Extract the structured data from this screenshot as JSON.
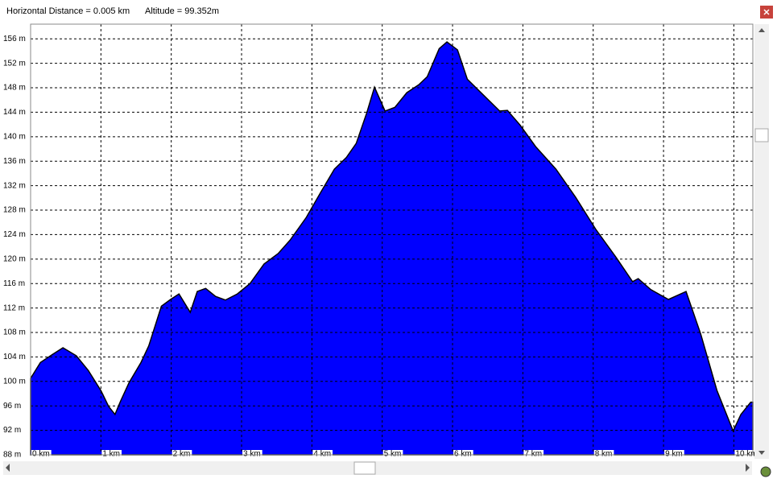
{
  "header": {
    "distance": "Horizontal Distance = 0.005 km",
    "altitude": "Altitude =  99.352m"
  },
  "chart_data": {
    "type": "area",
    "color": "#0000ff",
    "grid": true,
    "x": [
      0,
      0.14,
      0.31,
      0.46,
      0.65,
      0.82,
      1.0,
      1.11,
      1.2,
      1.28,
      1.4,
      1.57,
      1.68,
      1.86,
      1.99,
      2.11,
      2.27,
      2.37,
      2.49,
      2.63,
      2.77,
      2.94,
      3.12,
      3.32,
      3.52,
      3.69,
      3.92,
      4.12,
      4.32,
      4.49,
      4.63,
      4.78,
      4.89,
      5.04,
      5.18,
      5.35,
      5.52,
      5.64,
      5.81,
      5.92,
      6.07,
      6.21,
      6.44,
      6.67,
      6.78,
      6.96,
      7.18,
      7.47,
      7.75,
      8.04,
      8.33,
      8.56,
      8.64,
      8.82,
      9.07,
      9.32,
      9.53,
      9.76,
      9.99,
      10.1,
      10.24,
      10.27
    ],
    "values": [
      100.5,
      103.1,
      104.4,
      105.5,
      104.2,
      101.8,
      98.5,
      95.9,
      94.6,
      96.8,
      99.8,
      103.1,
      105.8,
      112.3,
      113.4,
      114.3,
      111.3,
      114.7,
      115.2,
      113.9,
      113.3,
      114.3,
      116.0,
      119.2,
      120.9,
      123.1,
      126.8,
      130.8,
      134.7,
      136.6,
      138.9,
      143.9,
      148.1,
      144.2,
      144.8,
      147.2,
      148.5,
      149.8,
      154.4,
      155.5,
      154.2,
      149.4,
      146.8,
      144.2,
      144.3,
      141.9,
      138.4,
      134.7,
      130.1,
      124.8,
      120.2,
      116.3,
      116.8,
      115.0,
      113.4,
      114.7,
      107.7,
      98.5,
      91.9,
      94.6,
      96.6,
      96.6
    ],
    "xlim": [
      0,
      10.27
    ],
    "ylim": [
      88,
      158.4
    ],
    "xticks": [
      {
        "value": 0,
        "label": "0 km"
      },
      {
        "value": 1,
        "label": "1 km"
      },
      {
        "value": 2,
        "label": "2 km"
      },
      {
        "value": 3,
        "label": "3 km"
      },
      {
        "value": 4,
        "label": "4 km"
      },
      {
        "value": 5,
        "label": "5 km"
      },
      {
        "value": 6,
        "label": "6 km"
      },
      {
        "value": 7,
        "label": "7 km"
      },
      {
        "value": 8,
        "label": "8 km"
      },
      {
        "value": 9,
        "label": "9 km"
      },
      {
        "value": 10,
        "label": "10 km"
      }
    ],
    "yticks": [
      {
        "value": 88,
        "label": "88 m"
      },
      {
        "value": 92,
        "label": "92 m"
      },
      {
        "value": 96,
        "label": "96 m"
      },
      {
        "value": 100,
        "label": "100 m"
      },
      {
        "value": 104,
        "label": "104 m"
      },
      {
        "value": 108,
        "label": "108 m"
      },
      {
        "value": 112,
        "label": "112 m"
      },
      {
        "value": 116,
        "label": "116 m"
      },
      {
        "value": 120,
        "label": "120 m"
      },
      {
        "value": 124,
        "label": "124 m"
      },
      {
        "value": 128,
        "label": "128 m"
      },
      {
        "value": 132,
        "label": "132 m"
      },
      {
        "value": 136,
        "label": "136 m"
      },
      {
        "value": 140,
        "label": "140 m"
      },
      {
        "value": 144,
        "label": "144 m"
      },
      {
        "value": 148,
        "label": "148 m"
      },
      {
        "value": 152,
        "label": "152 m"
      },
      {
        "value": 156,
        "label": "156 m"
      }
    ]
  }
}
